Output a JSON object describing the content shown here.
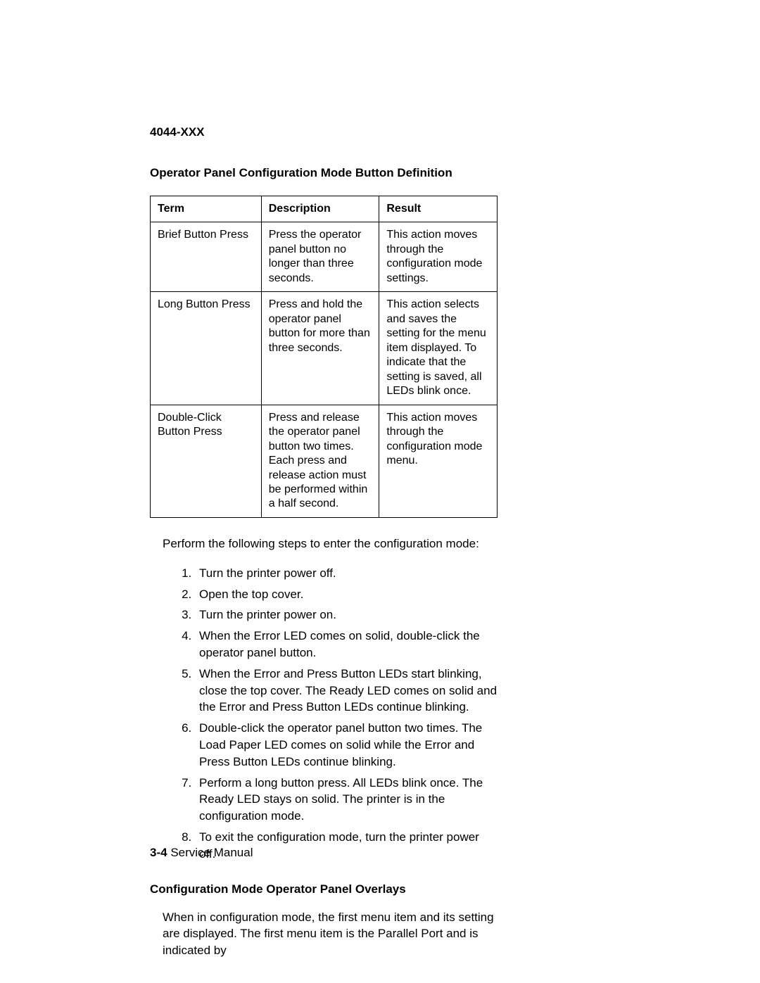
{
  "doc_id": "4044-XXX",
  "heading1": "Operator Panel Configuration Mode Button Definition",
  "table": {
    "headers": {
      "term": "Term",
      "description": "Description",
      "result": "Result"
    },
    "rows": [
      {
        "term": "Brief Button Press",
        "description": "Press the operator panel button no longer than three seconds.",
        "result": "This action moves through the configuration mode settings."
      },
      {
        "term": "Long Button Press",
        "description": "Press and hold the operator panel button for more than three seconds.",
        "result": "This action selects and saves the setting for the menu item displayed. To indicate that the setting is saved, all LEDs blink once."
      },
      {
        "term": "Double-Click Button Press",
        "description": "Press and release the operator panel button two times. Each press and release action must be performed within a half second.",
        "result": "This action moves through the configuration mode menu."
      }
    ]
  },
  "intro_para": "Perform the following steps to enter the configuration mode:",
  "steps": [
    "Turn the printer power off.",
    "Open the top cover.",
    "Turn the printer power on.",
    "When the Error LED comes on solid, double-click the operator panel button.",
    "When the Error and Press Button LEDs start blinking, close the top cover. The Ready LED comes on solid and the Error and Press Button LEDs continue blinking.",
    "Double-click the operator panel button two times. The Load Paper LED comes on solid while the Error and Press Button LEDs continue blinking.",
    "Perform a long button press. All LEDs blink once. The Ready LED stays on solid. The printer is in the configuration mode.",
    "To exit the configuration mode, turn the printer power off."
  ],
  "heading2": "Configuration Mode Operator Panel Overlays",
  "para2": "When in configuration mode, the first menu item and its setting are displayed. The first menu item is the Parallel Port and is indicated by",
  "footer": {
    "page": "3-4",
    "label": "Service Manual"
  }
}
